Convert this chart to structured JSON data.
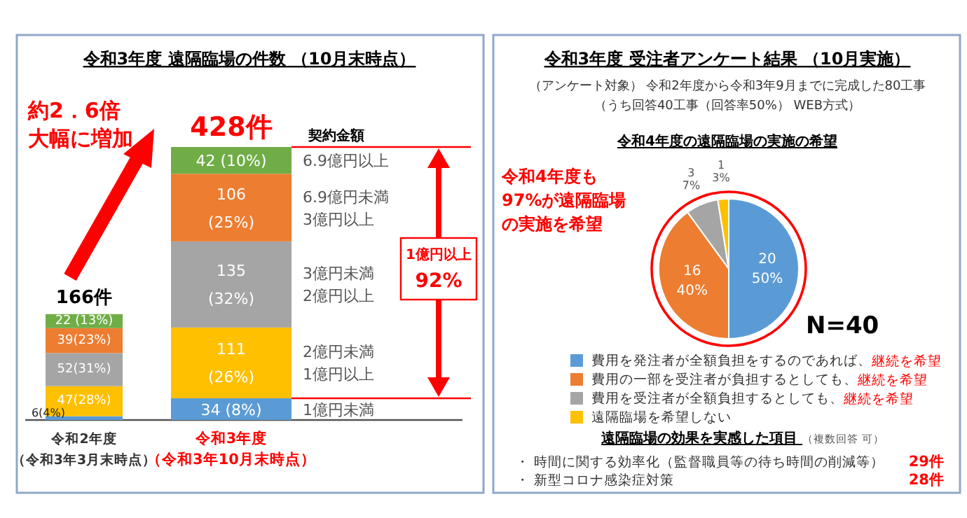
{
  "chart_data": [
    {
      "type": "bar",
      "title": "令和3年度 遠隔臨場の件数 （10月末時点）",
      "categories": [
        "令和2年度（令和3年3月末時点）",
        "令和3年度（令和3年10月末時点）"
      ],
      "stacked": true,
      "tick_labels": "x",
      "legend_title": "契約金額",
      "series": [
        {
          "name": "1億円未満",
          "color": "#5b9bd5",
          "values": [
            6,
            34
          ],
          "value_labels": [
            "6(4%)",
            "34 (8%)"
          ]
        },
        {
          "name": "2億円未満 1億円以上",
          "color": "#ffc000",
          "values": [
            47,
            111
          ],
          "value_labels": [
            "47(28%)",
            "111 (26%)"
          ]
        },
        {
          "name": "3億円未満 2億円以上",
          "color": "#a5a5a5",
          "values": [
            52,
            135
          ],
          "value_labels": [
            "52(31%)",
            "135 (32%)"
          ]
        },
        {
          "name": "6.9億円未満 3億円以上",
          "color": "#ed7d31",
          "values": [
            39,
            106
          ],
          "value_labels": [
            "39(23%)",
            "106 (25%)"
          ]
        },
        {
          "name": "6.9億円以上",
          "color": "#70ad47",
          "values": [
            22,
            42
          ],
          "value_labels": [
            "22 (13%)",
            "42 (10%)"
          ]
        }
      ],
      "totals": [
        "166件",
        "428件"
      ],
      "annotations": [
        "約2．6倍",
        "大幅に増加",
        "1億円以上 92%"
      ]
    },
    {
      "type": "pie",
      "title": "令和3年度 受注者アンケート結果 （10月実施）",
      "subtitle": "（アンケート対象） 令和2年度から令和3年9月までに完成した80工事",
      "categories": [
        "費用を発注者が全額負担をするのであれば、継続を希望",
        "費用の一部を受注者が負担するとしても、継続を希望",
        "費用を受注者が全額負担するとしても、継続を希望",
        "遠隔臨場を希望しない"
      ],
      "values": [
        20,
        16,
        3,
        1
      ],
      "colors": [
        "#5b9bd5",
        "#ed7d31",
        "#a5a5a5",
        "#ffc000"
      ],
      "value_labels": [
        "20 50%",
        "16 40%",
        "3 7%",
        "1 3%"
      ],
      "legend": "bottom",
      "annotations": [
        "（うち回答40工事（回答率50%） WEB方式）",
        "令和4年度の遠隔臨場の実施の希望",
        "令和4年度も",
        "97%が遠隔臨場",
        "の実施を希望",
        "N=40",
        "遠隔臨場の効果を実感した項目 （複数回答 可）",
        "・ 時間に関する効率化（監督職員等の待ち時間の削減等） 29件",
        "・ 新型コロナ感染症対策 28件"
      ]
    }
  ]
}
